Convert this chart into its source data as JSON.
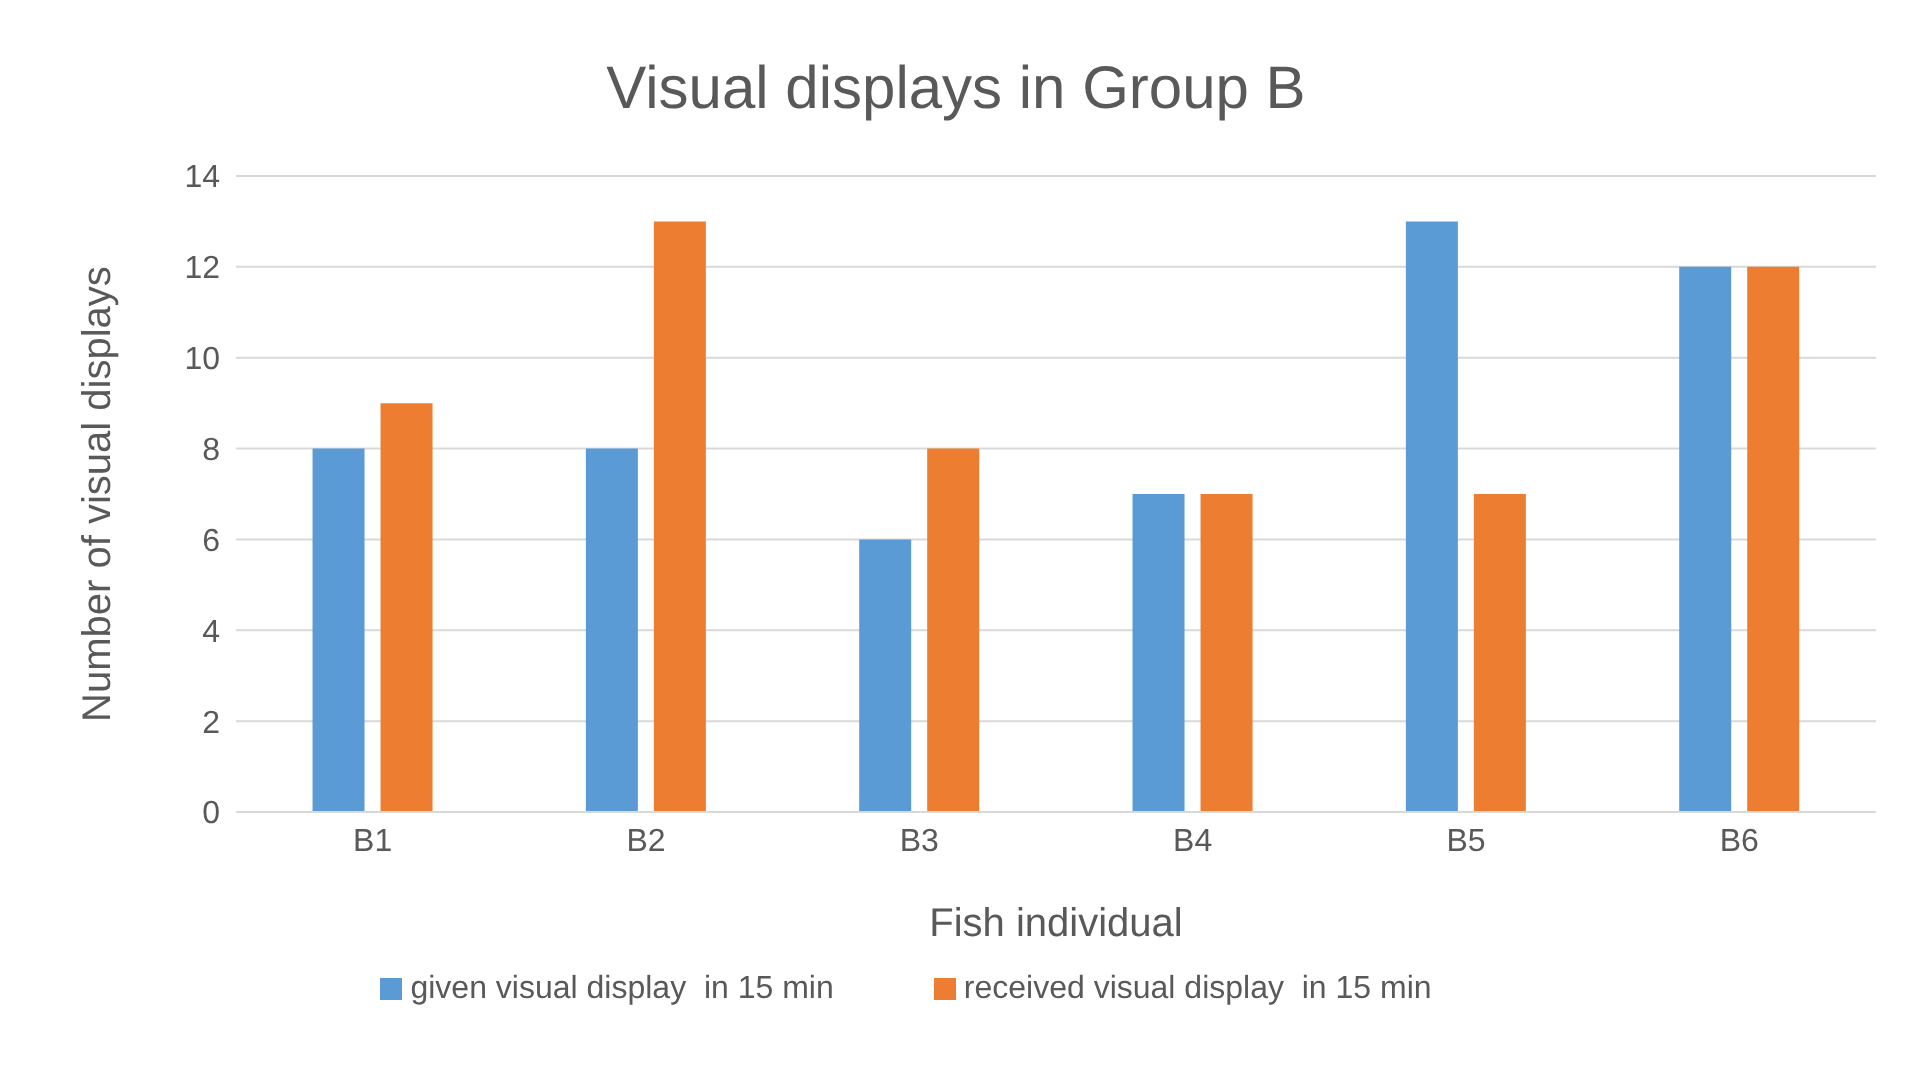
{
  "chart_data": {
    "type": "bar",
    "title": "Visual displays in Group B",
    "xlabel": "Fish individual",
    "ylabel": "Number of visual displays",
    "categories": [
      "B1",
      "B2",
      "B3",
      "B4",
      "B5",
      "B6"
    ],
    "series": [
      {
        "name": "given visual display  in 15 min",
        "color": "#5b9bd5",
        "values": [
          8,
          8,
          6,
          7,
          13,
          12
        ]
      },
      {
        "name": "received visual display  in 15 min",
        "color": "#ed7d31",
        "values": [
          9,
          13,
          8,
          7,
          7,
          12
        ]
      }
    ],
    "ylim": [
      0,
      14
    ],
    "yticks": [
      0,
      2,
      4,
      6,
      8,
      10,
      12,
      14
    ],
    "grid": "y",
    "legend": "bottom"
  }
}
